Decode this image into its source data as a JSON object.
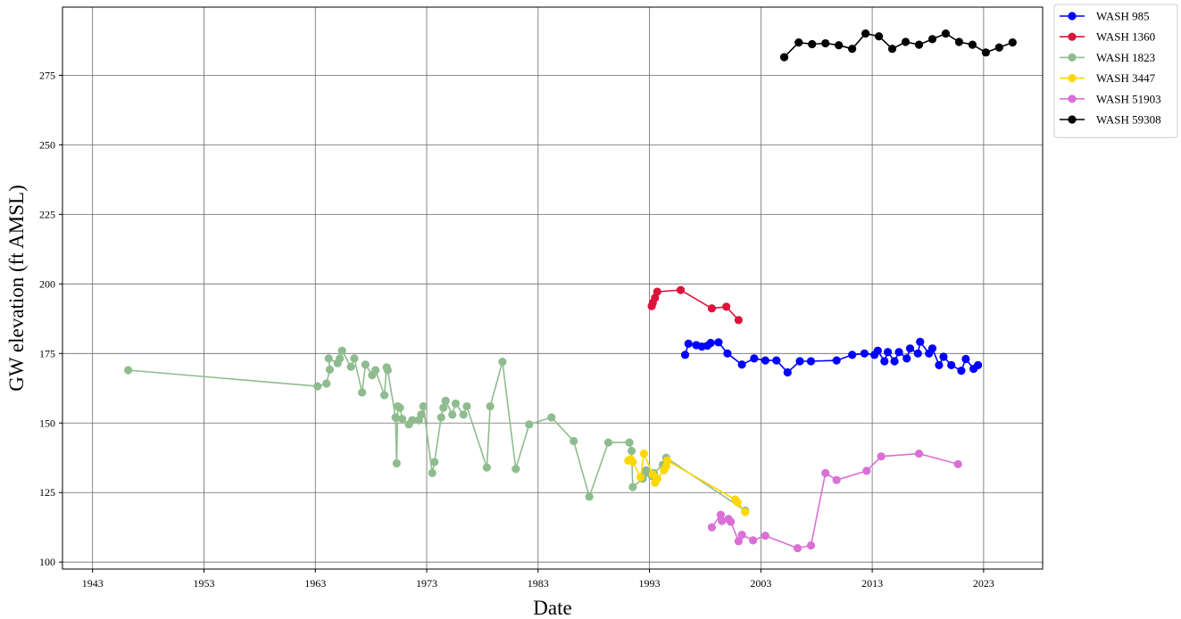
{
  "chart_data": {
    "type": "line",
    "title": "",
    "xlabel": "Date",
    "ylabel": "GW elevation (ft AMSL)",
    "xlim": [
      1940.3,
      2028.3
    ],
    "ylim": [
      97.5,
      299.5
    ],
    "x_ticks": [
      1943,
      1953,
      1963,
      1973,
      1983,
      1993,
      2003,
      2013,
      2023
    ],
    "y_ticks": [
      100,
      125,
      150,
      175,
      200,
      225,
      250,
      275
    ],
    "grid": true,
    "legend_position": "outside-top-right",
    "series": [
      {
        "name": "WASH 985",
        "color": "#0000ff",
        "points": [
          [
            1996.2,
            174.5
          ],
          [
            1996.5,
            178.5
          ],
          [
            1997.2,
            178.0
          ],
          [
            1997.7,
            177.5
          ],
          [
            1998.2,
            177.8
          ],
          [
            1998.5,
            178.8
          ],
          [
            1999.2,
            179.0
          ],
          [
            2000.0,
            175.0
          ],
          [
            2001.3,
            171.0
          ],
          [
            2002.4,
            173.2
          ],
          [
            2003.4,
            172.5
          ],
          [
            2004.4,
            172.5
          ],
          [
            2005.4,
            168.2
          ],
          [
            2006.5,
            172.2
          ],
          [
            2007.5,
            172.2
          ],
          [
            2009.8,
            172.5
          ],
          [
            2011.2,
            174.5
          ],
          [
            2012.3,
            175.0
          ],
          [
            2013.2,
            174.5
          ],
          [
            2013.5,
            176.0
          ],
          [
            2014.1,
            172.2
          ],
          [
            2014.4,
            175.5
          ],
          [
            2015.0,
            172.2
          ],
          [
            2015.4,
            175.5
          ],
          [
            2016.1,
            173.2
          ],
          [
            2016.4,
            176.8
          ],
          [
            2017.1,
            175.0
          ],
          [
            2017.3,
            179.2
          ],
          [
            2018.1,
            175.0
          ],
          [
            2018.4,
            176.8
          ],
          [
            2019.0,
            170.8
          ],
          [
            2019.4,
            173.8
          ],
          [
            2020.1,
            170.8
          ],
          [
            2021.0,
            168.8
          ],
          [
            2021.4,
            173.0
          ],
          [
            2022.1,
            169.5
          ],
          [
            2022.5,
            170.8
          ]
        ]
      },
      {
        "name": "WASH 1360",
        "color": "#dc143c",
        "points": [
          [
            1993.2,
            192.0
          ],
          [
            1993.3,
            193.2
          ],
          [
            1993.5,
            195.0
          ],
          [
            1993.7,
            197.2
          ],
          [
            1995.8,
            197.8
          ],
          [
            1998.6,
            191.2
          ],
          [
            1999.9,
            191.8
          ],
          [
            2001.0,
            187.0
          ]
        ]
      },
      {
        "name": "WASH 1823",
        "color": "#8fbc8f",
        "points": [
          [
            1946.2,
            169.0
          ],
          [
            1963.2,
            163.2
          ],
          [
            1964.0,
            164.2
          ],
          [
            1964.3,
            169.2
          ],
          [
            1964.2,
            173.2
          ],
          [
            1965.0,
            171.5
          ],
          [
            1965.2,
            173.2
          ],
          [
            1965.4,
            176.0
          ],
          [
            1966.2,
            170.2
          ],
          [
            1966.5,
            173.2
          ],
          [
            1967.2,
            161.0
          ],
          [
            1967.5,
            171.0
          ],
          [
            1968.1,
            167.2
          ],
          [
            1968.4,
            169.0
          ],
          [
            1969.2,
            160.0
          ],
          [
            1969.4,
            170.0
          ],
          [
            1969.5,
            169.0
          ],
          [
            1970.2,
            152.0
          ],
          [
            1970.3,
            135.5
          ],
          [
            1970.4,
            156.0
          ],
          [
            1970.6,
            155.5
          ],
          [
            1970.8,
            151.5
          ],
          [
            1971.4,
            149.5
          ],
          [
            1971.7,
            151.0
          ],
          [
            1972.3,
            151.0
          ],
          [
            1972.5,
            153.0
          ],
          [
            1972.7,
            156.0
          ],
          [
            1973.5,
            132.0
          ],
          [
            1973.7,
            136.0
          ],
          [
            1974.3,
            152.0
          ],
          [
            1974.5,
            155.5
          ],
          [
            1974.7,
            158.0
          ],
          [
            1975.3,
            153.0
          ],
          [
            1975.6,
            157.0
          ],
          [
            1976.3,
            153.0
          ],
          [
            1976.6,
            156.0
          ],
          [
            1978.4,
            134.0
          ],
          [
            1978.7,
            156.0
          ],
          [
            1979.8,
            172.0
          ],
          [
            1981.0,
            133.5
          ],
          [
            1982.2,
            149.5
          ],
          [
            1984.2,
            152.0
          ],
          [
            1986.2,
            143.5
          ],
          [
            1987.6,
            123.5
          ],
          [
            1989.3,
            143.0
          ],
          [
            1991.2,
            143.0
          ],
          [
            1991.4,
            140.0
          ],
          [
            1991.5,
            127.0
          ],
          [
            1992.4,
            130.0
          ],
          [
            1992.6,
            132.0
          ],
          [
            1992.7,
            133.0
          ],
          [
            1993.2,
            131.0
          ],
          [
            1993.4,
            132.0
          ],
          [
            1994.2,
            135.0
          ],
          [
            1994.5,
            137.5
          ],
          [
            2001.6,
            118.5
          ]
        ]
      },
      {
        "name": "WASH 3447",
        "color": "#ffd700",
        "points": [
          [
            1991.1,
            136.5
          ],
          [
            1991.3,
            137.0
          ],
          [
            1991.5,
            136.0
          ],
          [
            1992.2,
            130.5
          ],
          [
            1992.5,
            139.0
          ],
          [
            1993.3,
            131.5
          ],
          [
            1993.5,
            128.5
          ],
          [
            1993.7,
            130.0
          ],
          [
            1994.3,
            133.0
          ],
          [
            1994.5,
            134.5
          ],
          [
            1994.6,
            136.5
          ],
          [
            2000.7,
            122.5
          ],
          [
            2000.9,
            121.5
          ],
          [
            2001.6,
            118.0
          ]
        ]
      },
      {
        "name": "WASH 51903",
        "color": "#da70d6",
        "points": [
          [
            1998.6,
            112.5
          ],
          [
            1999.4,
            117.0
          ],
          [
            1999.5,
            114.8
          ],
          [
            2000.1,
            115.5
          ],
          [
            2000.3,
            114.5
          ],
          [
            2001.0,
            107.5
          ],
          [
            2001.3,
            109.8
          ],
          [
            2002.3,
            107.8
          ],
          [
            2003.4,
            109.5
          ],
          [
            2006.3,
            105.0
          ],
          [
            2007.5,
            106.0
          ],
          [
            2008.8,
            132.0
          ],
          [
            2009.8,
            129.5
          ],
          [
            2012.5,
            132.8
          ],
          [
            2013.8,
            138.0
          ],
          [
            2017.2,
            139.0
          ],
          [
            2020.7,
            135.2
          ]
        ]
      },
      {
        "name": "WASH 59308",
        "color": "#000000",
        "points": [
          [
            2005.1,
            281.5
          ],
          [
            2006.4,
            286.8
          ],
          [
            2007.6,
            286.2
          ],
          [
            2008.8,
            286.5
          ],
          [
            2010.0,
            285.8
          ],
          [
            2011.2,
            284.5
          ],
          [
            2012.4,
            290.0
          ],
          [
            2013.6,
            289.0
          ],
          [
            2014.8,
            284.5
          ],
          [
            2016.0,
            287.0
          ],
          [
            2017.2,
            286.0
          ],
          [
            2018.4,
            288.0
          ],
          [
            2019.6,
            290.0
          ],
          [
            2020.8,
            287.0
          ],
          [
            2022.0,
            286.0
          ],
          [
            2023.2,
            283.2
          ],
          [
            2024.4,
            285.0
          ],
          [
            2025.6,
            286.8
          ]
        ]
      }
    ]
  }
}
